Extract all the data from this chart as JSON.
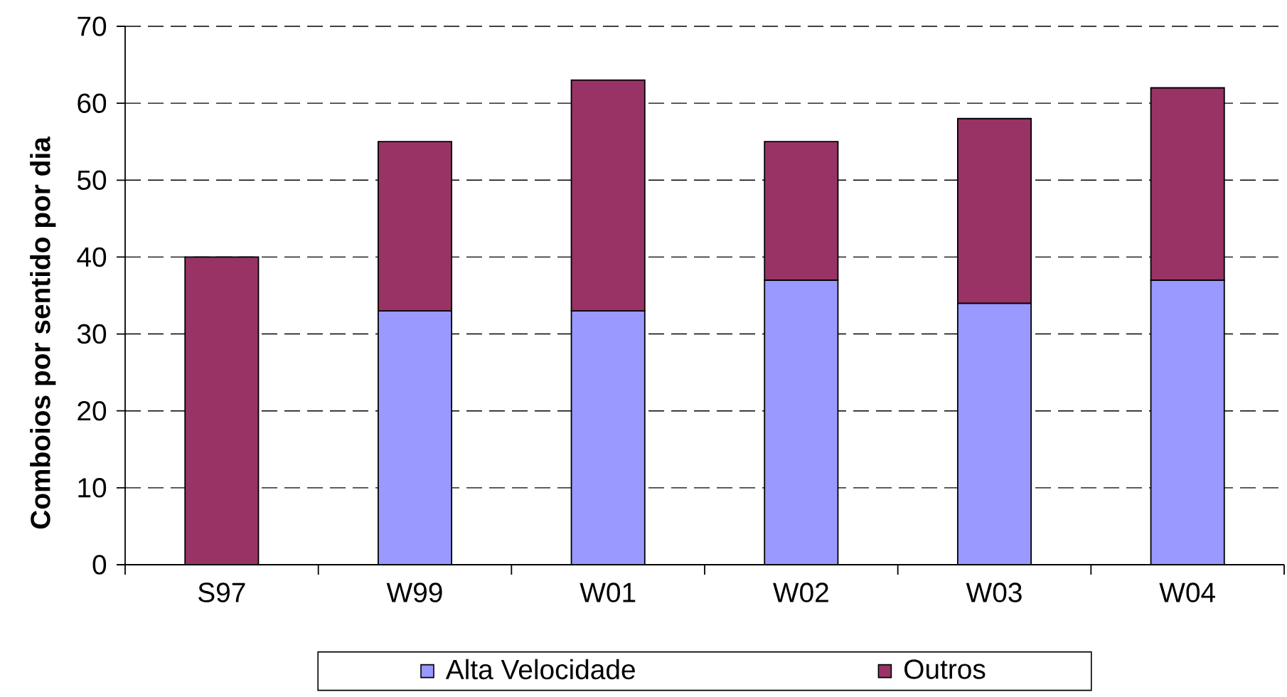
{
  "chart_data": {
    "type": "bar",
    "stacked": true,
    "ylabel": "Comboios por sentido por dia",
    "categories": [
      "S97",
      "W99",
      "W01",
      "W02",
      "W03",
      "W04"
    ],
    "series": [
      {
        "name": "Alta Velocidade",
        "color": "#9999ff",
        "values": [
          null,
          33,
          33,
          37,
          34,
          37
        ]
      },
      {
        "name": "Outros",
        "color": "#993366",
        "values": [
          40,
          22,
          30,
          18,
          24,
          25
        ]
      }
    ],
    "ylim": [
      0,
      70
    ],
    "yticks": [
      0,
      10,
      20,
      30,
      40,
      50,
      60,
      70
    ],
    "grid": "y",
    "legend": "bottom"
  }
}
